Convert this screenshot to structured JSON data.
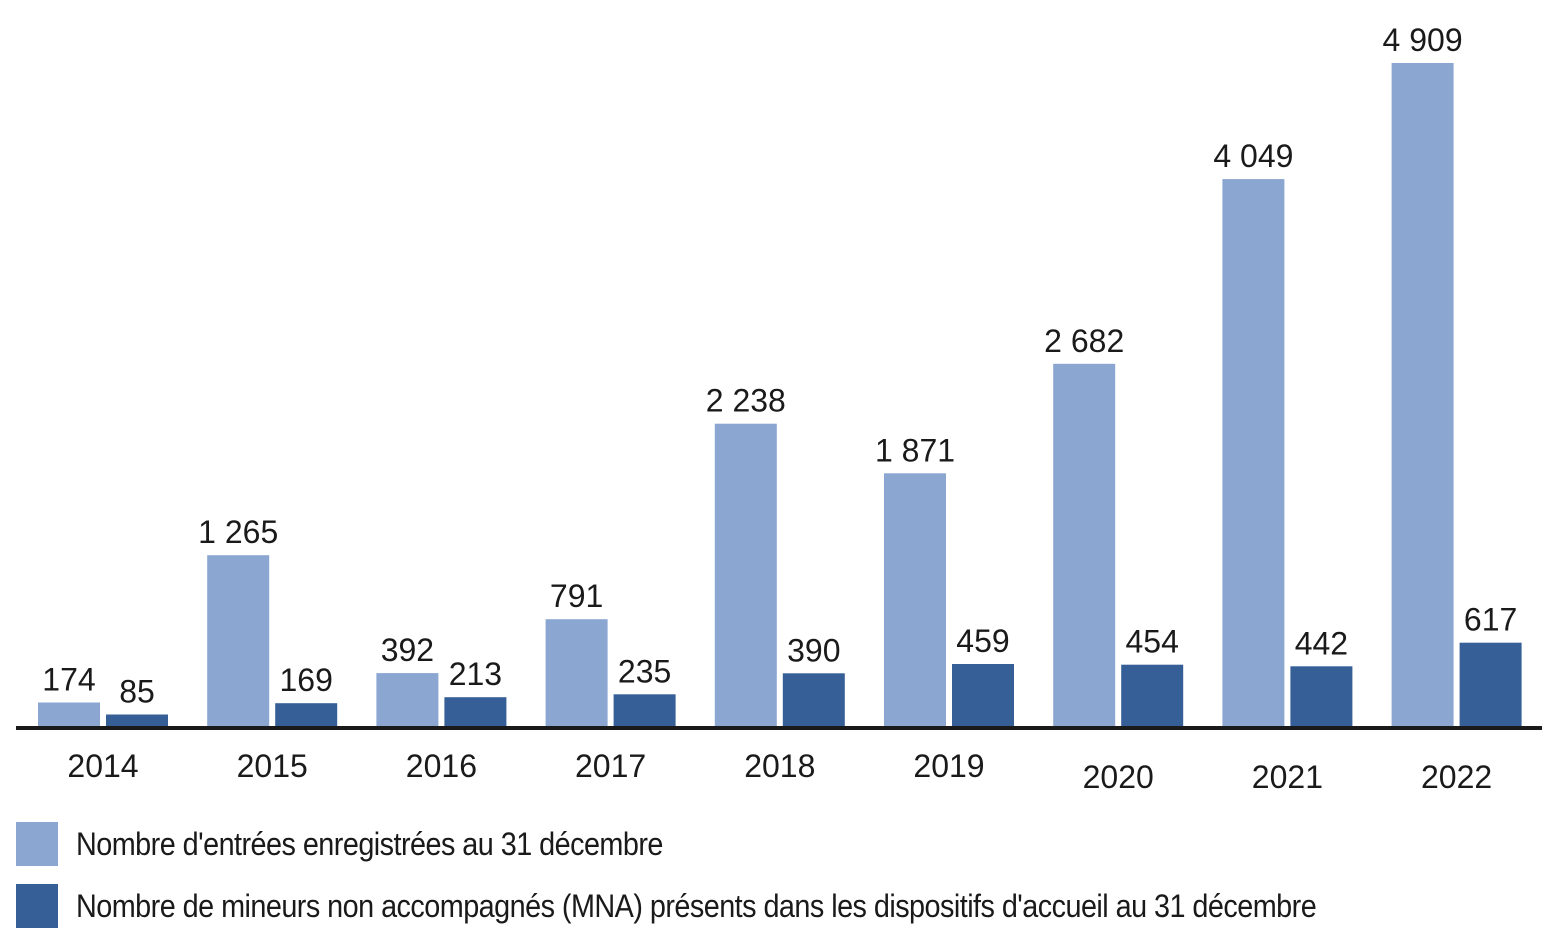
{
  "chart_data": {
    "type": "bar",
    "title": "",
    "xlabel": "",
    "ylabel": "",
    "ylim": [
      0,
      5000
    ],
    "grid": false,
    "legend_position": "bottom-left",
    "categories": [
      "2014",
      "2015",
      "2016",
      "2017",
      "2018",
      "2019",
      "2020",
      "2021",
      "2022"
    ],
    "series": [
      {
        "name": "Nombre d'entrées enregistrées au 31 décembre",
        "color": "#8ba6d1",
        "values": [
          174,
          1265,
          392,
          791,
          2238,
          1871,
          2682,
          4049,
          4909
        ],
        "labels": [
          "174",
          "1 265",
          "392",
          "791",
          "2 238",
          "1 871",
          "2 682",
          "4 049",
          "4 909"
        ]
      },
      {
        "name": "Nombre de mineurs non accompagnés (MNA) présents dans les dispositifs d'accueil au 31 décembre",
        "color": "#365f98",
        "values": [
          85,
          169,
          213,
          235,
          390,
          459,
          454,
          442,
          617
        ],
        "labels": [
          "85",
          "169",
          "213",
          "235",
          "390",
          "459",
          "454",
          "442",
          "617"
        ]
      }
    ],
    "axis_color": "#1a1a1a"
  }
}
